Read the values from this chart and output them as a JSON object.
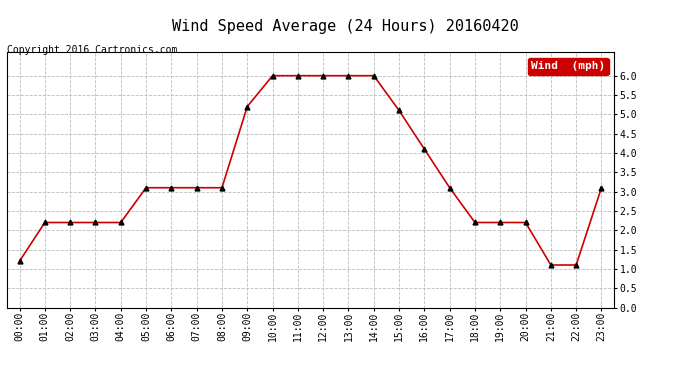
{
  "title": "Wind Speed Average (24 Hours) 20160420",
  "copyright": "Copyright 2016 Cartronics.com",
  "legend_label": "Wind  (mph)",
  "legend_bg": "#cc0000",
  "legend_text_color": "#ffffff",
  "x_labels": [
    "00:00",
    "01:00",
    "02:00",
    "03:00",
    "04:00",
    "05:00",
    "06:00",
    "07:00",
    "08:00",
    "09:00",
    "10:00",
    "11:00",
    "12:00",
    "13:00",
    "14:00",
    "15:00",
    "16:00",
    "17:00",
    "18:00",
    "19:00",
    "20:00",
    "21:00",
    "22:00",
    "23:00"
  ],
  "y_values": [
    1.2,
    2.2,
    2.2,
    2.2,
    2.2,
    3.1,
    3.1,
    3.1,
    3.1,
    5.2,
    6.0,
    6.0,
    6.0,
    6.0,
    6.0,
    5.1,
    4.1,
    3.1,
    2.2,
    2.2,
    2.2,
    1.1,
    1.1,
    3.1
  ],
  "ylim": [
    0.0,
    6.6
  ],
  "yticks": [
    0.0,
    0.5,
    1.0,
    1.5,
    2.0,
    2.5,
    3.0,
    3.5,
    4.0,
    4.5,
    5.0,
    5.5,
    6.0
  ],
  "line_color": "#cc0000",
  "marker_color": "#000000",
  "bg_color": "#ffffff",
  "grid_color": "#bbbbbb",
  "title_fontsize": 11,
  "copyright_fontsize": 7,
  "tick_fontsize": 7,
  "legend_fontsize": 8,
  "figsize": [
    6.9,
    3.75
  ],
  "dpi": 100
}
